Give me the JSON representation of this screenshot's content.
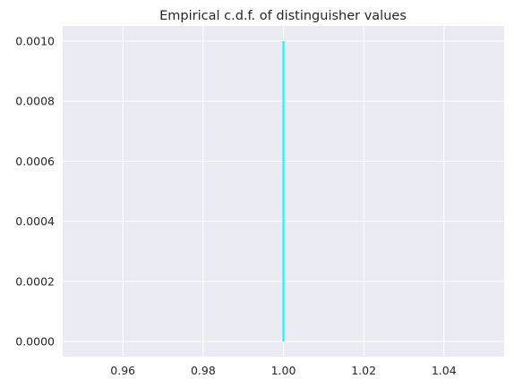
{
  "chart_data": {
    "type": "line",
    "title": "Empirical c.d.f. of distinguisher values",
    "xlabel": "",
    "ylabel": "",
    "xlim": [
      0.945,
      1.055
    ],
    "ylim": [
      -5e-05,
      0.00105
    ],
    "grid": true,
    "x_ticks": [
      0.96,
      0.98,
      1.0,
      1.02,
      1.04
    ],
    "x_tick_labels": [
      "0.96",
      "0.98",
      "1.00",
      "1.02",
      "1.04"
    ],
    "y_ticks": [
      0.0,
      0.0002,
      0.0004,
      0.0006,
      0.0008,
      0.001
    ],
    "y_tick_labels": [
      "0.0000",
      "0.0002",
      "0.0004",
      "0.0006",
      "0.0008",
      "0.0010"
    ],
    "series": [
      {
        "color": "#00FFFF",
        "x": [
          1.0,
          1.0
        ],
        "y": [
          0.0,
          0.001
        ]
      }
    ],
    "colors": {
      "background": "#EAEAF2",
      "grid": "#FFFFFF",
      "text": "#262626"
    }
  }
}
